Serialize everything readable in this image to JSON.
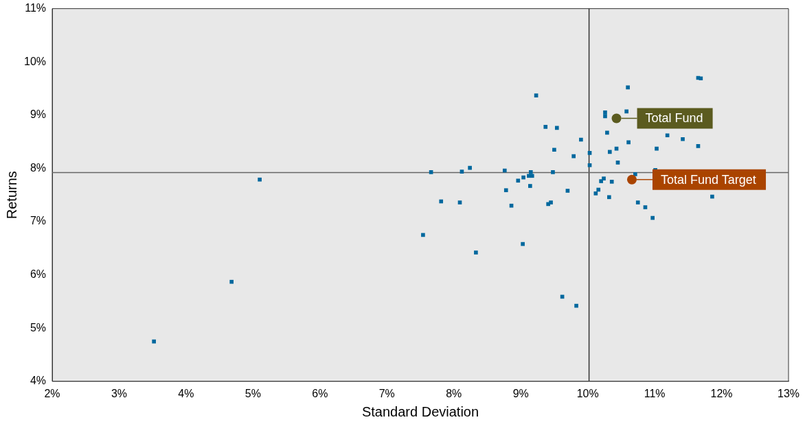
{
  "chart_data": {
    "type": "scatter",
    "xlabel": "Standard Deviation",
    "ylabel": "Returns",
    "xlim": [
      2,
      13
    ],
    "xticks": [
      {
        "value": 2,
        "label": "2%"
      },
      {
        "value": 3,
        "label": "3%"
      },
      {
        "value": 4,
        "label": "4%"
      },
      {
        "value": 5,
        "label": "5%"
      },
      {
        "value": 6,
        "label": "6%"
      },
      {
        "value": 7,
        "label": "7%"
      },
      {
        "value": 8,
        "label": "8%"
      },
      {
        "value": 9,
        "label": "9%"
      },
      {
        "value": 10,
        "label": "10%"
      },
      {
        "value": 11,
        "label": "11%"
      },
      {
        "value": 12,
        "label": "12%"
      },
      {
        "value": 13,
        "label": "13%"
      }
    ],
    "ylim": [
      4,
      11
    ],
    "yticks": [
      {
        "value": 4,
        "label": "4%"
      },
      {
        "value": 5,
        "label": "5%"
      },
      {
        "value": 6,
        "label": "6%"
      },
      {
        "value": 7,
        "label": "7%"
      },
      {
        "value": 8,
        "label": "8%"
      },
      {
        "value": 9,
        "label": "9%"
      },
      {
        "value": 10,
        "label": "10%"
      },
      {
        "value": 11,
        "label": "11%"
      }
    ],
    "grid": false,
    "legend": "right",
    "ref_lines": [
      {
        "axis": "x",
        "value": 10.02,
        "color": "#333333"
      },
      {
        "axis": "y",
        "value": 7.92,
        "color": "#666666"
      }
    ],
    "series": [
      {
        "color": "#00689e",
        "marker": "square",
        "x": [
          3.52,
          4.68,
          5.1,
          7.54,
          7.66,
          7.81,
          8.09,
          8.12,
          8.24,
          8.33,
          8.76,
          8.78,
          8.86,
          8.96,
          9.04,
          9.03,
          9.12,
          9.15,
          9.17,
          9.14,
          9.23,
          9.37,
          9.41,
          9.45,
          9.48,
          9.5,
          9.54,
          9.62,
          9.7,
          9.79,
          9.83,
          9.9,
          10.03,
          10.03,
          10.12,
          10.16,
          10.2,
          10.24,
          10.26,
          10.26,
          10.29,
          10.32,
          10.33,
          10.36,
          10.43,
          10.45,
          10.6,
          10.58,
          10.61,
          10.71,
          10.75,
          10.86,
          10.97,
          11.01,
          11.03,
          11.19,
          11.42,
          11.65,
          11.69,
          11.65,
          11.86
        ],
        "values": [
          4.75,
          5.87,
          7.79,
          6.75,
          7.93,
          7.38,
          7.36,
          7.94,
          8.01,
          6.42,
          7.96,
          7.59,
          7.3,
          7.77,
          7.83,
          6.58,
          7.86,
          7.93,
          7.86,
          7.67,
          9.37,
          8.78,
          7.33,
          7.36,
          7.93,
          8.35,
          8.76,
          5.59,
          7.58,
          8.23,
          5.42,
          8.54,
          8.06,
          8.29,
          7.53,
          7.6,
          7.76,
          7.81,
          9.05,
          8.98,
          8.67,
          7.46,
          8.31,
          7.75,
          8.37,
          8.11,
          9.52,
          9.07,
          8.49,
          7.89,
          7.36,
          7.27,
          7.07,
          7.97,
          8.37,
          8.62,
          8.55,
          9.7,
          9.69,
          8.42,
          7.47
        ]
      },
      {
        "name": "Total Fund",
        "color": "#5b5b1f",
        "marker": "circle",
        "x": [
          10.43
        ],
        "values": [
          8.94
        ]
      },
      {
        "name": "Total Fund Target",
        "color": "#aa4400",
        "marker": "circle",
        "x": [
          10.66
        ],
        "values": [
          7.79
        ]
      }
    ]
  }
}
